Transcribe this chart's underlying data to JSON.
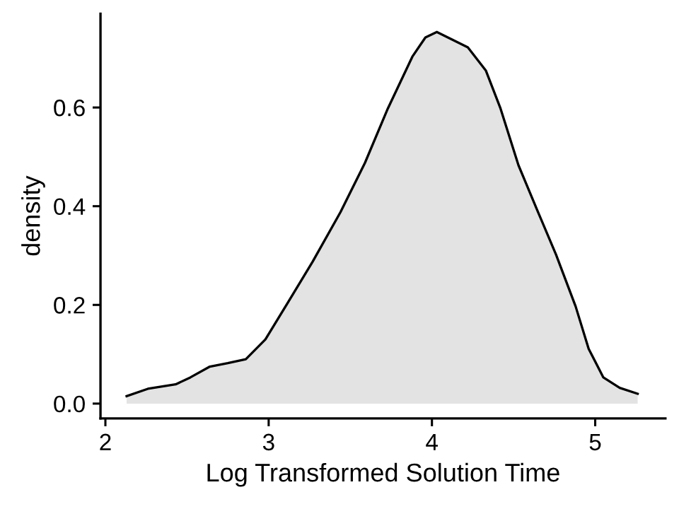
{
  "chart_data": {
    "type": "area",
    "xlabel": "Log Transformed Solution Time",
    "ylabel": "density",
    "x": [
      2.13,
      2.26,
      2.43,
      2.52,
      2.64,
      2.75,
      2.86,
      2.98,
      3.12,
      3.27,
      3.44,
      3.59,
      3.73,
      3.88,
      3.96,
      4.03,
      4.22,
      4.33,
      4.42,
      4.53,
      4.65,
      4.76,
      4.88,
      4.96,
      5.05,
      5.15,
      5.26
    ],
    "series": [
      {
        "color": "#e3e3e3",
        "values": [
          0.015,
          0.03,
          0.039,
          0.053,
          0.075,
          0.082,
          0.09,
          0.13,
          0.206,
          0.288,
          0.388,
          0.488,
          0.598,
          0.703,
          0.742,
          0.753,
          0.722,
          0.675,
          0.598,
          0.483,
          0.388,
          0.302,
          0.197,
          0.111,
          0.053,
          0.032,
          0.02
        ]
      }
    ],
    "xlim": [
      1.97,
      5.43
    ],
    "ylim": [
      -0.03,
      0.79
    ],
    "xticks": [
      2,
      3,
      4,
      5
    ],
    "yticks": [
      {
        "value": 0,
        "label": "0.0"
      },
      {
        "value": 0.2,
        "label": "0.2"
      },
      {
        "value": 0.4,
        "label": "0.4"
      },
      {
        "value": 0.6,
        "label": "0.6"
      }
    ],
    "grid": false,
    "legend": false
  }
}
